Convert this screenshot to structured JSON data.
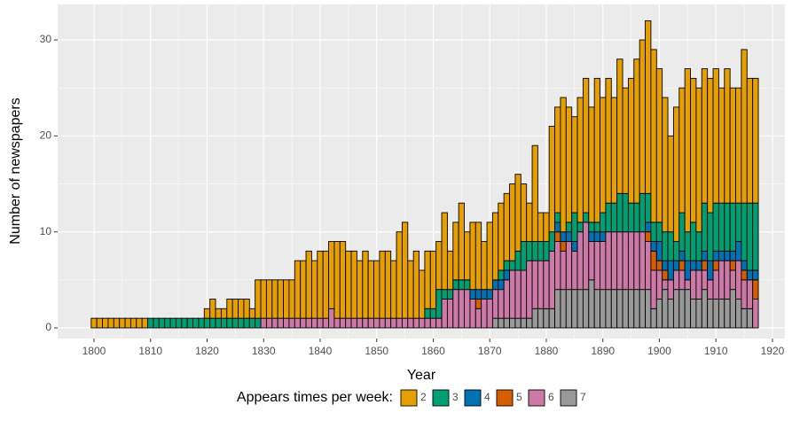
{
  "chart_data": {
    "type": "bar",
    "stacked": true,
    "x_label": "Year",
    "y_label": "Number of newspapers",
    "legend_title": "Appears times per week:",
    "x": [
      1800,
      1801,
      1802,
      1803,
      1804,
      1805,
      1806,
      1807,
      1808,
      1809,
      1810,
      1811,
      1812,
      1813,
      1814,
      1815,
      1816,
      1817,
      1818,
      1819,
      1820,
      1821,
      1822,
      1823,
      1824,
      1825,
      1826,
      1827,
      1828,
      1829,
      1830,
      1831,
      1832,
      1833,
      1834,
      1835,
      1836,
      1837,
      1838,
      1839,
      1840,
      1841,
      1842,
      1843,
      1844,
      1845,
      1846,
      1847,
      1848,
      1849,
      1850,
      1851,
      1852,
      1853,
      1854,
      1855,
      1856,
      1857,
      1858,
      1859,
      1860,
      1861,
      1862,
      1863,
      1864,
      1865,
      1866,
      1867,
      1868,
      1869,
      1870,
      1871,
      1872,
      1873,
      1874,
      1875,
      1876,
      1877,
      1878,
      1879,
      1880,
      1881,
      1882,
      1883,
      1884,
      1885,
      1886,
      1887,
      1888,
      1889,
      1890,
      1891,
      1892,
      1893,
      1894,
      1895,
      1896,
      1897,
      1898,
      1899,
      1900,
      1901,
      1902,
      1903,
      1904,
      1905,
      1906,
      1907,
      1908,
      1909,
      1910,
      1911,
      1912,
      1913,
      1914,
      1915,
      1916,
      1917
    ],
    "series": [
      {
        "name": "2",
        "color": "#E69F00",
        "values": [
          1,
          1,
          1,
          1,
          1,
          1,
          1,
          1,
          1,
          1,
          0,
          0,
          0,
          0,
          0,
          0,
          0,
          0,
          0,
          0,
          1,
          2,
          1,
          1,
          2,
          2,
          2,
          2,
          1,
          4,
          4,
          4,
          4,
          4,
          4,
          4,
          6,
          6,
          7,
          6,
          7,
          7,
          7,
          8,
          8,
          7,
          7,
          6,
          7,
          6,
          6,
          7,
          7,
          6,
          9,
          10,
          6,
          7,
          5,
          6,
          6,
          5,
          8,
          4,
          6,
          8,
          5,
          7,
          7,
          5,
          7,
          7,
          7,
          7,
          8,
          8,
          6,
          4,
          10,
          3,
          3,
          11,
          11,
          14,
          12,
          10,
          13,
          14,
          12,
          15,
          12,
          13,
          11,
          14,
          11,
          13,
          15,
          16,
          18,
          18,
          16,
          14,
          10,
          14,
          13,
          17,
          15,
          15,
          14,
          14,
          14,
          12,
          14,
          12,
          12,
          16,
          13,
          13
        ]
      },
      {
        "name": "3",
        "color": "#009E73",
        "values": [
          0,
          0,
          0,
          0,
          0,
          0,
          0,
          0,
          0,
          0,
          1,
          1,
          1,
          1,
          1,
          1,
          1,
          1,
          1,
          1,
          1,
          1,
          1,
          1,
          1,
          1,
          1,
          1,
          1,
          1,
          0,
          0,
          0,
          0,
          0,
          0,
          0,
          0,
          0,
          0,
          0,
          0,
          0,
          0,
          0,
          0,
          0,
          0,
          0,
          0,
          0,
          0,
          0,
          0,
          0,
          0,
          0,
          0,
          0,
          1,
          1,
          3,
          1,
          1,
          1,
          1,
          1,
          0,
          0,
          0,
          0,
          0,
          1,
          1,
          1,
          2,
          3,
          2,
          2,
          2,
          2,
          2,
          1,
          0,
          1,
          3,
          1,
          1,
          1,
          1,
          2,
          3,
          3,
          4,
          4,
          3,
          3,
          4,
          3,
          2,
          2,
          3,
          3,
          2,
          4,
          3,
          4,
          3,
          5,
          5,
          5,
          5,
          5,
          5,
          4,
          6,
          7,
          7
        ]
      },
      {
        "name": "4",
        "color": "#0072B2",
        "values": [
          0,
          0,
          0,
          0,
          0,
          0,
          0,
          0,
          0,
          0,
          0,
          0,
          0,
          0,
          0,
          0,
          0,
          0,
          0,
          0,
          0,
          0,
          0,
          0,
          0,
          0,
          0,
          0,
          0,
          0,
          0,
          0,
          0,
          0,
          0,
          0,
          0,
          0,
          0,
          0,
          0,
          0,
          0,
          0,
          0,
          0,
          0,
          0,
          0,
          0,
          0,
          0,
          0,
          0,
          0,
          0,
          0,
          0,
          0,
          0,
          0,
          0,
          0,
          0,
          0,
          0,
          0,
          1,
          1,
          1,
          1,
          1,
          1,
          1,
          0,
          0,
          0,
          0,
          0,
          0,
          0,
          0,
          1,
          1,
          1,
          1,
          0,
          0,
          1,
          1,
          1,
          0,
          0,
          0,
          0,
          0,
          0,
          0,
          1,
          1,
          2,
          1,
          2,
          1,
          1,
          2,
          1,
          1,
          1,
          2,
          1,
          1,
          1,
          1,
          2,
          1,
          1,
          1
        ]
      },
      {
        "name": "5",
        "color": "#D55E00",
        "values": [
          0,
          0,
          0,
          0,
          0,
          0,
          0,
          0,
          0,
          0,
          0,
          0,
          0,
          0,
          0,
          0,
          0,
          0,
          0,
          0,
          0,
          0,
          0,
          0,
          0,
          0,
          0,
          0,
          0,
          0,
          0,
          0,
          0,
          0,
          0,
          0,
          0,
          0,
          0,
          0,
          0,
          0,
          0,
          0,
          0,
          0,
          0,
          0,
          0,
          0,
          0,
          0,
          0,
          0,
          0,
          0,
          0,
          0,
          0,
          0,
          0,
          0,
          0,
          0,
          0,
          0,
          0,
          0,
          1,
          0,
          0,
          0,
          0,
          0,
          0,
          0,
          0,
          0,
          0,
          0,
          0,
          0,
          1,
          1,
          0,
          0,
          0,
          0,
          0,
          0,
          0,
          0,
          0,
          0,
          0,
          0,
          0,
          0,
          1,
          2,
          1,
          1,
          0,
          0,
          1,
          0,
          0,
          0,
          1,
          0,
          1,
          0,
          0,
          1,
          0,
          1,
          0,
          2
        ]
      },
      {
        "name": "6",
        "color": "#CC79A7",
        "values": [
          0,
          0,
          0,
          0,
          0,
          0,
          0,
          0,
          0,
          0,
          0,
          0,
          0,
          0,
          0,
          0,
          0,
          0,
          0,
          0,
          0,
          0,
          0,
          0,
          0,
          0,
          0,
          0,
          0,
          0,
          1,
          1,
          1,
          1,
          1,
          1,
          1,
          1,
          1,
          1,
          1,
          1,
          2,
          1,
          1,
          1,
          1,
          1,
          1,
          1,
          1,
          1,
          1,
          1,
          1,
          1,
          1,
          1,
          1,
          1,
          1,
          1,
          3,
          3,
          4,
          4,
          4,
          3,
          2,
          3,
          3,
          3,
          3,
          4,
          5,
          5,
          5,
          6,
          5,
          5,
          5,
          6,
          5,
          4,
          5,
          4,
          6,
          7,
          4,
          5,
          5,
          6,
          6,
          6,
          6,
          6,
          6,
          6,
          5,
          4,
          3,
          1,
          2,
          2,
          2,
          1,
          3,
          3,
          2,
          2,
          3,
          4,
          4,
          2,
          4,
          3,
          3,
          3
        ]
      },
      {
        "name": "7",
        "color": "#999999",
        "values": [
          0,
          0,
          0,
          0,
          0,
          0,
          0,
          0,
          0,
          0,
          0,
          0,
          0,
          0,
          0,
          0,
          0,
          0,
          0,
          0,
          0,
          0,
          0,
          0,
          0,
          0,
          0,
          0,
          0,
          0,
          0,
          0,
          0,
          0,
          0,
          0,
          0,
          0,
          0,
          0,
          0,
          0,
          0,
          0,
          0,
          0,
          0,
          0,
          0,
          0,
          0,
          0,
          0,
          0,
          0,
          0,
          0,
          0,
          0,
          0,
          0,
          0,
          0,
          0,
          0,
          0,
          0,
          0,
          0,
          0,
          0,
          1,
          1,
          1,
          1,
          1,
          1,
          1,
          2,
          2,
          2,
          2,
          4,
          4,
          4,
          4,
          4,
          4,
          5,
          4,
          4,
          4,
          4,
          4,
          4,
          4,
          4,
          4,
          4,
          2,
          3,
          4,
          3,
          4,
          4,
          4,
          3,
          3,
          4,
          3,
          3,
          3,
          3,
          4,
          3,
          2,
          2,
          0
        ]
      }
    ],
    "xlim": [
      1793.57,
      1922.2
    ],
    "ylim": [
      -1.11,
      33.7
    ],
    "xticks": [
      1800,
      1810,
      1820,
      1830,
      1840,
      1850,
      1860,
      1870,
      1880,
      1890,
      1900,
      1910,
      1920
    ],
    "yticks": [
      0,
      10,
      20,
      30
    ],
    "grid": true,
    "legend_position": "bottom"
  }
}
